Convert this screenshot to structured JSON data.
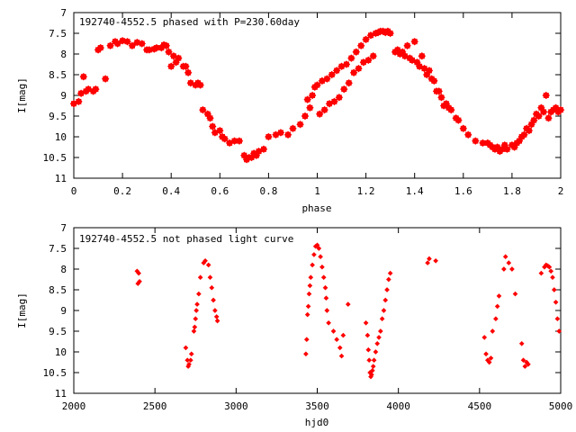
{
  "chart_data": [
    {
      "type": "scatter",
      "title": "192740-4552.5 phased with P=230.60day",
      "xlabel": "phase",
      "ylabel": "I[mag]",
      "xlim": [
        0,
        2
      ],
      "ylim": [
        11,
        7
      ],
      "y_inverted": true,
      "xticks": [
        "0",
        "0.2",
        "0.4",
        "0.6",
        "0.8",
        "1",
        "1.2",
        "1.4",
        "1.6",
        "1.8",
        "2"
      ],
      "yticks": [
        "7",
        "7.5",
        "8",
        "8.5",
        "9",
        "9.5",
        "10",
        "10.5",
        "11"
      ],
      "marker": "star",
      "color": "#ff0000",
      "series": [
        {
          "x": [
            0.0,
            0.02,
            0.03,
            0.04,
            0.05,
            0.06,
            0.08,
            0.09,
            0.1,
            0.11,
            0.13,
            0.15,
            0.17,
            0.18,
            0.2,
            0.22,
            0.24,
            0.26,
            0.28,
            0.3,
            0.31,
            0.33,
            0.34,
            0.36,
            0.37,
            0.38,
            0.39,
            0.4,
            0.41,
            0.42,
            0.43,
            0.45,
            0.46,
            0.47,
            0.48,
            0.5,
            0.51,
            0.52,
            0.53,
            0.55,
            0.56,
            0.57,
            0.58,
            0.6,
            0.61,
            0.62,
            0.64,
            0.66,
            0.68,
            0.7,
            0.71,
            0.72,
            0.73,
            0.74,
            0.75,
            0.76,
            0.78,
            0.8,
            0.83,
            0.85,
            0.88,
            0.9,
            0.93,
            0.95,
            0.96,
            0.97,
            0.98,
            0.99,
            1.0,
            1.01,
            1.02,
            1.03,
            1.04,
            1.05,
            1.06,
            1.07,
            1.08,
            1.09,
            1.1,
            1.11,
            1.12,
            1.13,
            1.14,
            1.15,
            1.16,
            1.17,
            1.18,
            1.19,
            1.2,
            1.21,
            1.22,
            1.23,
            1.24,
            1.25,
            1.26,
            1.27,
            1.28,
            1.29,
            1.3,
            1.32,
            1.33,
            1.34,
            1.35,
            1.36,
            1.37,
            1.38,
            1.39,
            1.4,
            1.41,
            1.42,
            1.43,
            1.44,
            1.45,
            1.46,
            1.47,
            1.48,
            1.49,
            1.5,
            1.51,
            1.52,
            1.53,
            1.54,
            1.55,
            1.57,
            1.58,
            1.6,
            1.62,
            1.65,
            1.68,
            1.7,
            1.71,
            1.72,
            1.73,
            1.74,
            1.75,
            1.76,
            1.77,
            1.78,
            1.8,
            1.81,
            1.82,
            1.83,
            1.84,
            1.85,
            1.86,
            1.87,
            1.88,
            1.89,
            1.9,
            1.91,
            1.92,
            1.93,
            1.94,
            1.95,
            1.96,
            1.97,
            1.98,
            1.99,
            2.0
          ],
          "y": [
            9.2,
            9.15,
            8.95,
            8.55,
            8.9,
            8.85,
            8.9,
            8.85,
            7.9,
            7.85,
            8.6,
            7.8,
            7.7,
            7.75,
            7.68,
            7.7,
            7.8,
            7.72,
            7.75,
            7.9,
            7.9,
            7.88,
            7.85,
            7.85,
            7.78,
            7.8,
            7.95,
            8.3,
            8.05,
            8.2,
            8.1,
            8.3,
            8.3,
            8.45,
            8.7,
            8.75,
            8.7,
            8.75,
            9.35,
            9.45,
            9.55,
            9.75,
            9.9,
            9.85,
            10.0,
            10.05,
            10.15,
            10.1,
            10.1,
            10.45,
            10.55,
            10.5,
            10.5,
            10.4,
            10.45,
            10.35,
            10.3,
            10.0,
            9.95,
            9.9,
            9.95,
            9.8,
            9.7,
            9.5,
            9.1,
            9.3,
            9.0,
            8.8,
            8.75,
            9.45,
            8.65,
            9.35,
            8.6,
            9.2,
            8.5,
            9.15,
            8.4,
            9.05,
            8.3,
            8.85,
            8.25,
            8.7,
            8.1,
            8.45,
            7.95,
            8.35,
            7.8,
            8.2,
            7.65,
            8.15,
            7.55,
            8.05,
            7.5,
            7.48,
            7.45,
            7.45,
            7.48,
            7.45,
            7.5,
            7.95,
            7.9,
            8.0,
            7.95,
            8.05,
            7.8,
            8.1,
            8.15,
            7.7,
            8.2,
            8.3,
            8.05,
            8.35,
            8.5,
            8.4,
            8.6,
            8.65,
            8.9,
            8.9,
            9.05,
            9.25,
            9.2,
            9.3,
            9.35,
            9.55,
            9.6,
            9.8,
            9.95,
            10.1,
            10.15,
            10.15,
            10.2,
            10.25,
            10.3,
            10.25,
            10.35,
            10.3,
            10.2,
            10.3,
            10.2,
            10.25,
            10.15,
            10.1,
            10.0,
            9.95,
            9.8,
            9.85,
            9.7,
            9.6,
            9.45,
            9.5,
            9.3,
            9.4,
            9.0,
            9.55,
            9.4,
            9.35,
            9.3,
            9.4,
            9.35
          ]
        }
      ]
    },
    {
      "type": "scatter",
      "title": "192740-4552.5 not phased light curve",
      "xlabel": "hjd0",
      "ylabel": "I[mag]",
      "xlim": [
        2000,
        5000
      ],
      "ylim": [
        11,
        7
      ],
      "y_inverted": true,
      "xticks": [
        "2000",
        "2500",
        "3000",
        "3500",
        "4000",
        "4500",
        "5000"
      ],
      "yticks": [
        "7",
        "7.5",
        "8",
        "8.5",
        "9",
        "9.5",
        "10",
        "10.5",
        "11"
      ],
      "marker": "diamond",
      "color": "#ff0000",
      "series": [
        {
          "x": [
            2390,
            2395,
            2400,
            2405,
            2690,
            2700,
            2705,
            2710,
            2720,
            2725,
            2740,
            2745,
            2750,
            2755,
            2760,
            2770,
            2780,
            2800,
            2810,
            2830,
            2840,
            2850,
            2860,
            2870,
            2880,
            2885,
            3430,
            3435,
            3440,
            3445,
            3450,
            3455,
            3460,
            3470,
            3480,
            3490,
            3500,
            3510,
            3520,
            3530,
            3540,
            3550,
            3555,
            3560,
            3570,
            3600,
            3620,
            3640,
            3650,
            3660,
            3690,
            3800,
            3810,
            3815,
            3820,
            3825,
            3830,
            3835,
            3840,
            3845,
            3850,
            3860,
            3870,
            3880,
            3890,
            3900,
            3910,
            3920,
            3930,
            3940,
            3950,
            4180,
            4190,
            4230,
            4530,
            4540,
            4550,
            4560,
            4570,
            4580,
            4600,
            4610,
            4620,
            4650,
            4660,
            4680,
            4700,
            4720,
            4760,
            4770,
            4780,
            4790,
            4800,
            4880,
            4900,
            4910,
            4920,
            4930,
            4940,
            4950,
            4960,
            4970,
            4980,
            4990
          ],
          "y": [
            8.05,
            8.35,
            8.1,
            8.3,
            9.9,
            10.2,
            10.35,
            10.3,
            10.2,
            10.05,
            9.5,
            9.4,
            9.2,
            9.0,
            8.85,
            8.6,
            8.2,
            7.85,
            7.8,
            7.9,
            8.2,
            8.45,
            8.75,
            9.0,
            9.15,
            9.25,
            10.05,
            9.7,
            9.1,
            8.9,
            8.6,
            8.4,
            8.2,
            7.9,
            7.65,
            7.45,
            7.42,
            7.5,
            7.7,
            7.95,
            8.2,
            8.45,
            8.7,
            9.0,
            9.3,
            9.5,
            9.7,
            9.9,
            10.1,
            9.6,
            8.85,
            9.3,
            9.6,
            9.95,
            10.2,
            10.5,
            10.6,
            10.55,
            10.45,
            10.35,
            10.2,
            10.0,
            9.8,
            9.65,
            9.5,
            9.2,
            9.0,
            8.75,
            8.5,
            8.25,
            8.1,
            7.85,
            7.75,
            7.8,
            9.65,
            10.05,
            10.2,
            10.25,
            10.15,
            9.5,
            9.2,
            8.9,
            8.65,
            8.0,
            7.7,
            7.85,
            8.0,
            8.6,
            9.8,
            10.2,
            10.35,
            10.25,
            10.3,
            8.1,
            7.95,
            7.9,
            7.92,
            7.95,
            8.05,
            8.2,
            8.5,
            8.8,
            9.2,
            9.5
          ]
        }
      ]
    }
  ]
}
